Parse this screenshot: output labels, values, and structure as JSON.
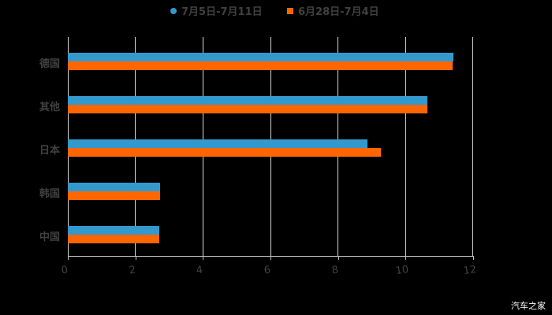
{
  "chart_data": {
    "type": "bar",
    "orientation": "horizontal",
    "title": "",
    "xlabel": "",
    "ylabel": "",
    "xlim": [
      0,
      12
    ],
    "x_ticks": [
      "0",
      "2",
      "4",
      "6",
      "8",
      "10",
      "12"
    ],
    "grid": true,
    "legend_position": "top",
    "categories": [
      "德国",
      "其他",
      "日本",
      "韩国",
      "中国"
    ],
    "series": [
      {
        "name": "7月5日-7月11日",
        "color": "#3399cc",
        "values": [
          11.42,
          10.65,
          8.86,
          2.73,
          2.71
        ]
      },
      {
        "name": "6月28日-7月4日",
        "color": "#ff6600",
        "values": [
          11.4,
          10.65,
          9.28,
          2.73,
          2.71
        ]
      }
    ]
  },
  "legend": {
    "items": [
      {
        "label": "7月5日-7月11日",
        "color": "#3399cc"
      },
      {
        "label": "6月28日-7月4日",
        "color": "#ff6600"
      }
    ]
  },
  "categories": [
    "德国",
    "其他",
    "日本",
    "韩国",
    "中国"
  ],
  "ticks": [
    "0",
    "2",
    "4",
    "6",
    "8",
    "10",
    "12"
  ],
  "watermark": "汽车之家"
}
